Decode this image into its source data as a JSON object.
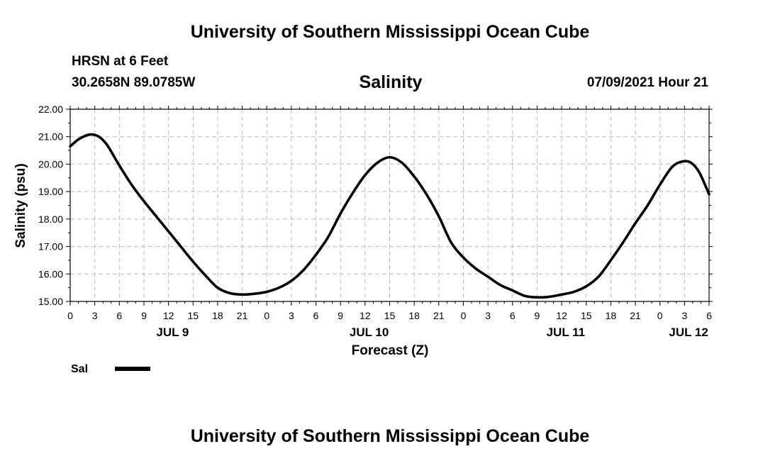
{
  "header": {
    "title": "University of Southern Mississippi Ocean Cube",
    "station": "HRSN at 6 Feet",
    "coords": "30.2658N  89.0785W",
    "timestamp": "07/09/2021 Hour 21"
  },
  "footer": {
    "title": "University of Southern Mississippi Ocean Cube"
  },
  "colors": {
    "line": "#000000",
    "grid": "#bbbbbb",
    "background": "#ffffff"
  },
  "chart_data": {
    "type": "line",
    "title": "Salinity",
    "xlabel": "Forecast (Z)",
    "ylabel": "Salinity (psu)",
    "ylim": [
      15,
      22
    ],
    "yticks": [
      "15.00",
      "16.00",
      "17.00",
      "18.00",
      "19.00",
      "20.00",
      "21.00",
      "22.00"
    ],
    "xlim_hours": [
      0,
      78
    ],
    "x_tick_step_hours": 3,
    "xtick_labels": [
      "0",
      "3",
      "6",
      "9",
      "12",
      "15",
      "18",
      "21",
      "0",
      "3",
      "6",
      "9",
      "12",
      "15",
      "18",
      "21",
      "0",
      "3",
      "6",
      "9",
      "12",
      "15",
      "18",
      "21",
      "0",
      "3",
      "6"
    ],
    "day_labels": [
      {
        "label": "JUL 9",
        "hour": 12.5
      },
      {
        "label": "JUL 10",
        "hour": 36.5
      },
      {
        "label": "JUL 11",
        "hour": 60.5
      },
      {
        "label": "JUL 12",
        "hour": 75.5
      }
    ],
    "grid": true,
    "legend": {
      "position": "bottom-left",
      "label": "Sal"
    },
    "series": [
      {
        "name": "Sal",
        "x": [
          0,
          1,
          2,
          2.7,
          3.5,
          4.5,
          6,
          7.5,
          9,
          10.5,
          12,
          13.5,
          15,
          16.5,
          18,
          19.5,
          21,
          22.5,
          24,
          25.5,
          27,
          28.5,
          30,
          31.5,
          33,
          34.5,
          36,
          37.5,
          39,
          40.5,
          42,
          43.5,
          45,
          46.5,
          48,
          49.5,
          51,
          52.5,
          54,
          55.5,
          57,
          58.5,
          60,
          61.5,
          63,
          64.5,
          66,
          67.5,
          69,
          70.5,
          72,
          73.5,
          74.8,
          75.8,
          76.8,
          78
        ],
        "values": [
          20.65,
          20.9,
          21.05,
          21.08,
          21.0,
          20.7,
          19.95,
          19.25,
          18.65,
          18.1,
          17.55,
          17.0,
          16.45,
          15.95,
          15.5,
          15.3,
          15.25,
          15.28,
          15.35,
          15.5,
          15.75,
          16.15,
          16.7,
          17.35,
          18.2,
          18.95,
          19.6,
          20.05,
          20.25,
          20.05,
          19.55,
          18.9,
          18.1,
          17.15,
          16.6,
          16.2,
          15.9,
          15.6,
          15.4,
          15.2,
          15.15,
          15.17,
          15.25,
          15.35,
          15.55,
          15.9,
          16.5,
          17.15,
          17.85,
          18.5,
          19.25,
          19.9,
          20.1,
          20.05,
          19.7,
          18.9
        ]
      }
    ]
  }
}
